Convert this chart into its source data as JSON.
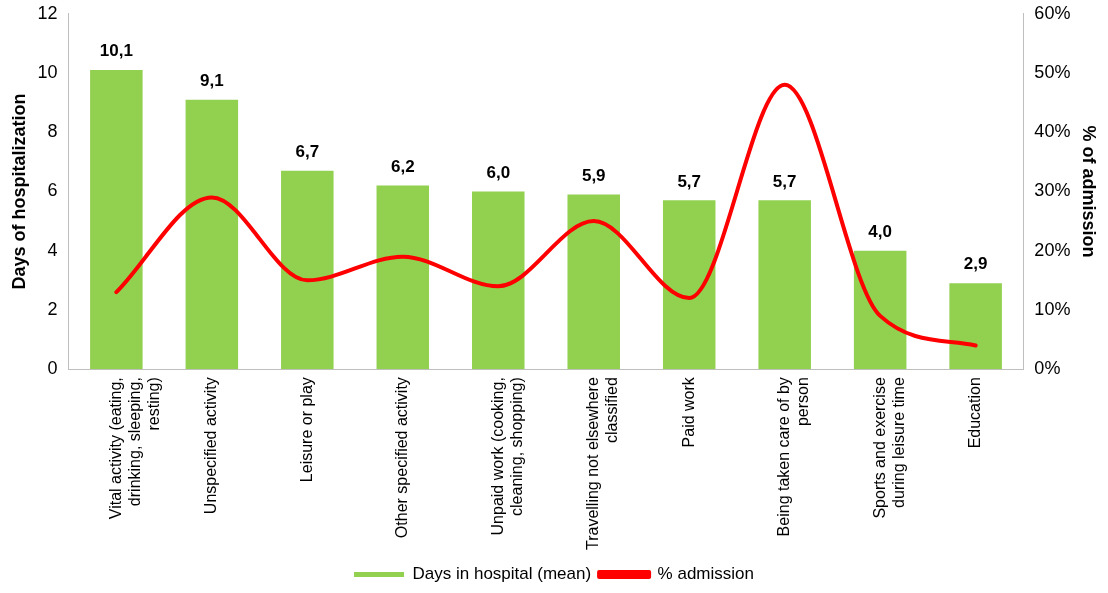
{
  "chart_data": {
    "type": "bar",
    "ylabel": "Days of hospitalization",
    "y2label": "% of admission",
    "categories": [
      "Vital activity (eating, drinking, sleeping, resting)",
      "Unspecified activity",
      "Leisure or play",
      "Other specified activity",
      "Unpaid work (cooking, cleaning, shopping)",
      "Travelling not elsewhere classified",
      "Paid work",
      "Being taken care of by person",
      "Sports and exercise during leisure time",
      "Education"
    ],
    "series": [
      {
        "name": "Days in hospital (mean)",
        "color": "#92d050",
        "values": [
          10.1,
          9.1,
          6.7,
          6.2,
          6.0,
          5.9,
          5.7,
          5.7,
          4.0,
          2.9
        ],
        "value_labels": [
          "10,1",
          "9,1",
          "6,7",
          "6,2",
          "6,0",
          "5,9",
          "5,7",
          "5,7",
          "4,0",
          "2,9"
        ]
      },
      {
        "name": "% admission",
        "type": "line",
        "axis": "y2",
        "color": "#ff0000",
        "marker": "none",
        "values": [
          13,
          29,
          15,
          19,
          14,
          25,
          12,
          48,
          9,
          4
        ]
      }
    ],
    "ylim": [
      0,
      12
    ],
    "yticks": [
      0,
      2,
      4,
      6,
      8,
      10,
      12
    ],
    "y2lim": [
      0,
      60
    ],
    "y2ticks": [
      {
        "value": 0,
        "label": "0%"
      },
      {
        "value": 10,
        "label": "10%"
      },
      {
        "value": 20,
        "label": "20%"
      },
      {
        "value": 30,
        "label": "30%"
      },
      {
        "value": 40,
        "label": "40%"
      },
      {
        "value": 50,
        "label": "50%"
      },
      {
        "value": 60,
        "label": "60%"
      }
    ],
    "grid": false,
    "legend": "bottom"
  }
}
